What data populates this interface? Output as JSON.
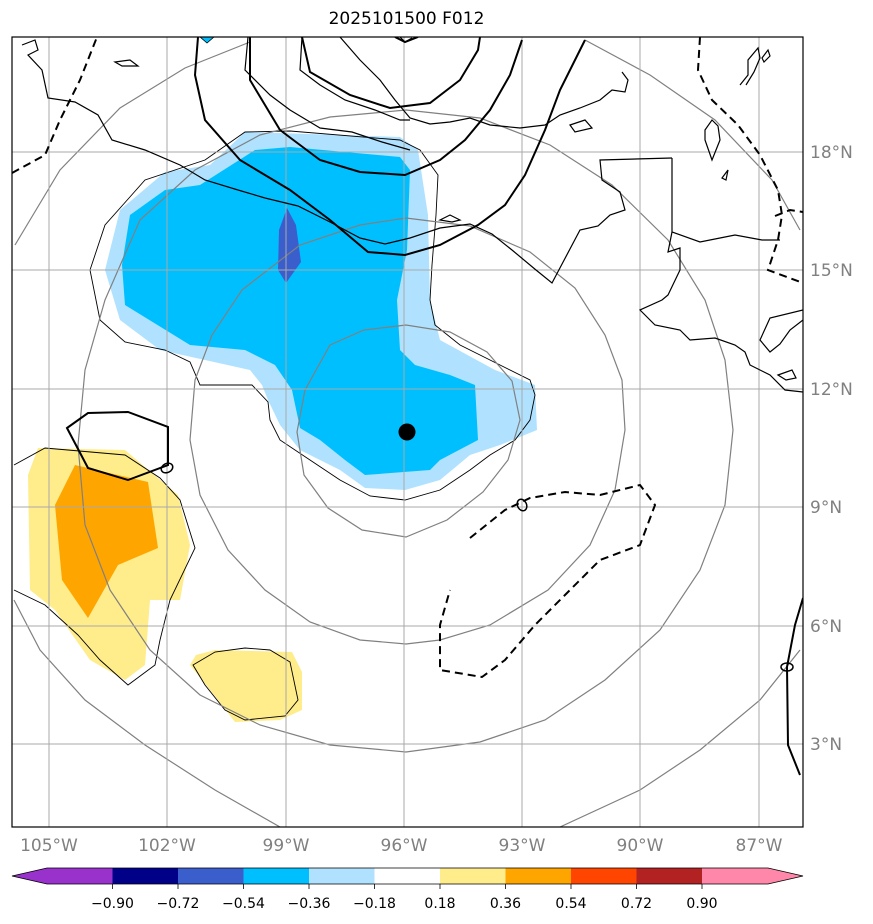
{
  "title": "2025101500 F012",
  "lon_labels": [
    "105°W",
    "102°W",
    "99°W",
    "96°W",
    "93°W",
    "90°W",
    "87°W"
  ],
  "lat_labels": [
    "18°N",
    "15°N",
    "12°N",
    "9°N",
    "6°N",
    "3°N"
  ],
  "colorbar": {
    "ticks": [
      "−0.90",
      "−0.72",
      "−0.54",
      "−0.36",
      "−0.18",
      "0.18",
      "0.36",
      "0.54",
      "0.72",
      "0.90"
    ],
    "colors": [
      "#9932cc",
      "#000088",
      "#3a5fcd",
      "#00bfff",
      "#b0e2ff",
      "#ffffff",
      "#ffec8b",
      "#ffa500",
      "#ff4500",
      "#b22222",
      "#ff88aa"
    ]
  },
  "center_marker": {
    "lon": -96.0,
    "lat": 10.9
  },
  "fill_colors": {
    "light_blue": "#b0e2ff",
    "deep_sky_blue": "#00bfff",
    "royal_blue": "#3a5fcd",
    "light_yellow": "#ffec8b",
    "orange": "#ffa500"
  }
}
